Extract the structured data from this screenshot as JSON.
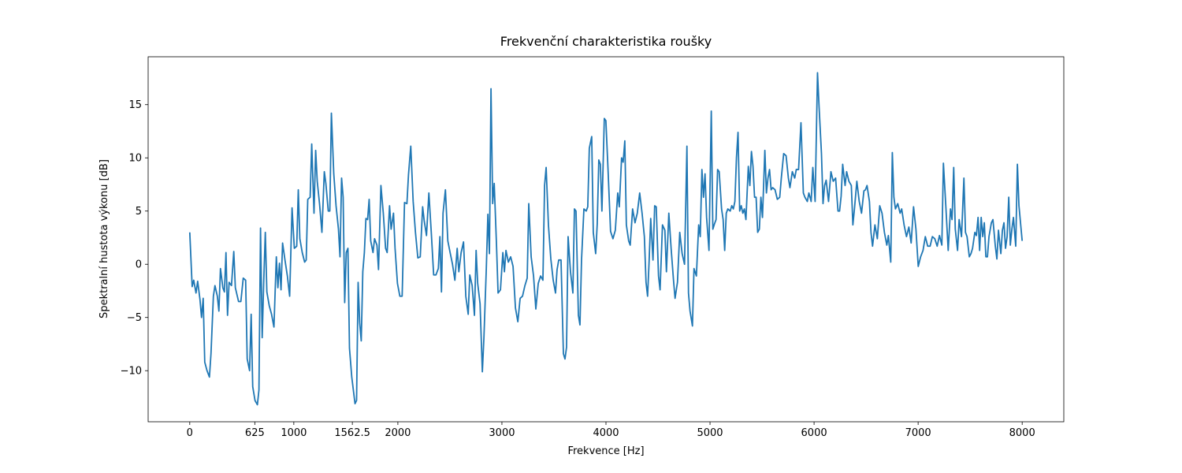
{
  "chart_data": {
    "type": "line",
    "title": "Frekvenční charakteristika roušky",
    "x_label": "Frekvence [Hz]",
    "y_label": "Spektralní hustota výkonu [dB]",
    "xlim": [
      -400,
      8400
    ],
    "ylim": [
      -14.8,
      19.5
    ],
    "xticks": [
      0,
      625,
      1000,
      1562.5,
      2000,
      3000,
      4000,
      5000,
      6000,
      7000,
      8000
    ],
    "yticks": [
      {
        "value": -10,
        "label": "−10"
      },
      {
        "value": -5,
        "label": "−5"
      },
      0,
      5,
      10,
      15
    ],
    "grid": false,
    "x": [
      0,
      23,
      38,
      60,
      76,
      98,
      113,
      129,
      144,
      166,
      189,
      204,
      227,
      242,
      265,
      280,
      295,
      318,
      333,
      348,
      363,
      378,
      401,
      423,
      438,
      469,
      491,
      514,
      537,
      552,
      575,
      590,
      605,
      627,
      650,
      665,
      680,
      696,
      711,
      726,
      741,
      764,
      786,
      809,
      832,
      847,
      862,
      877,
      892,
      915,
      938,
      960,
      983,
      1005,
      1028,
      1043,
      1058,
      1081,
      1104,
      1119,
      1134,
      1157,
      1172,
      1194,
      1210,
      1225,
      1247,
      1270,
      1293,
      1308,
      1331,
      1346,
      1361,
      1384,
      1406,
      1429,
      1444,
      1459,
      1474,
      1489,
      1504,
      1520,
      1535,
      1557,
      1588,
      1603,
      1618,
      1633,
      1648,
      1663,
      1678,
      1693,
      1709,
      1724,
      1739,
      1761,
      1776,
      1799,
      1814,
      1837,
      1860,
      1882,
      1897,
      1920,
      1935,
      1958,
      1973,
      1996,
      2019,
      2041,
      2064,
      2087,
      2102,
      2124,
      2147,
      2169,
      2192,
      2215,
      2238,
      2253,
      2275,
      2298,
      2321,
      2344,
      2366,
      2389,
      2404,
      2419,
      2434,
      2457,
      2480,
      2502,
      2525,
      2548,
      2570,
      2586,
      2608,
      2631,
      2653,
      2676,
      2691,
      2714,
      2736,
      2752,
      2767,
      2790,
      2812,
      2827,
      2850,
      2865,
      2880,
      2895,
      2911,
      2926,
      2948,
      2963,
      2986,
      3009,
      3024,
      3039,
      3062,
      3084,
      3107,
      3130,
      3153,
      3175,
      3198,
      3221,
      3243,
      3258,
      3281,
      3304,
      3326,
      3349,
      3372,
      3394,
      3410,
      3425,
      3447,
      3470,
      3493,
      3515,
      3530,
      3546,
      3568,
      3591,
      3606,
      3621,
      3636,
      3659,
      3682,
      3697,
      3712,
      3735,
      3750,
      3765,
      3788,
      3810,
      3825,
      3840,
      3863,
      3878,
      3901,
      3916,
      3931,
      3946,
      3961,
      3984,
      3999,
      4022,
      4044,
      4067,
      4090,
      4113,
      4128,
      4150,
      4165,
      4181,
      4196,
      4218,
      4233,
      4256,
      4279,
      4301,
      4324,
      4347,
      4369,
      4385,
      4400,
      4415,
      4430,
      4452,
      4468,
      4483,
      4505,
      4520,
      4543,
      4566,
      4581,
      4604,
      4626,
      4649,
      4664,
      4687,
      4709,
      4732,
      4755,
      4778,
      4793,
      4808,
      4831,
      4846,
      4869,
      4891,
      4906,
      4922,
      4937,
      4952,
      4967,
      4990,
      5012,
      5027,
      5043,
      5058,
      5073,
      5088,
      5111,
      5126,
      5141,
      5156,
      5171,
      5194,
      5209,
      5224,
      5239,
      5254,
      5269,
      5285,
      5300,
      5315,
      5330,
      5345,
      5368,
      5383,
      5398,
      5413,
      5428,
      5443,
      5458,
      5474,
      5489,
      5504,
      5527,
      5542,
      5557,
      5572,
      5587,
      5602,
      5625,
      5647,
      5670,
      5685,
      5708,
      5731,
      5753,
      5768,
      5791,
      5814,
      5829,
      5851,
      5874,
      5897,
      5912,
      5935,
      5950,
      5972,
      5988,
      6010,
      6033,
      6048,
      6071,
      6086,
      6101,
      6116,
      6139,
      6162,
      6184,
      6207,
      6230,
      6245,
      6260,
      6275,
      6298,
      6313,
      6335,
      6358,
      6373,
      6388,
      6411,
      6434,
      6456,
      6479,
      6494,
      6509,
      6532,
      6547,
      6562,
      6585,
      6608,
      6631,
      6653,
      6676,
      6699,
      6714,
      6737,
      6752,
      6767,
      6782,
      6804,
      6827,
      6842,
      6865,
      6888,
      6911,
      6933,
      6956,
      6979,
      7001,
      7024,
      7047,
      7069,
      7092,
      7115,
      7137,
      7160,
      7183,
      7205,
      7228,
      7243,
      7266,
      7289,
      7311,
      7326,
      7342,
      7357,
      7379,
      7394,
      7417,
      7440,
      7455,
      7470,
      7492,
      7508,
      7523,
      7545,
      7560,
      7576,
      7591,
      7606,
      7621,
      7636,
      7651,
      7666,
      7681,
      7704,
      7719,
      7742,
      7757,
      7772,
      7795,
      7810,
      7825,
      7840,
      7855,
      7871,
      7886,
      7901,
      7916,
      7938,
      7954,
      7969,
      8000
    ],
    "series": [
      {
        "color": "#1f77b4",
        "values": [
          3.0,
          -2.1,
          -1.5,
          -2.7,
          -1.6,
          -3.3,
          -5.0,
          -3.2,
          -9.2,
          -10.0,
          -10.6,
          -8.4,
          -3.0,
          -2.0,
          -3.0,
          -4.4,
          -0.4,
          -2.2,
          -2.6,
          1.1,
          -4.8,
          -1.7,
          -2.0,
          1.2,
          -2.2,
          -3.5,
          -3.5,
          -1.3,
          -1.5,
          -8.9,
          -10.0,
          -4.7,
          -11.5,
          -12.8,
          -13.2,
          -11.8,
          3.4,
          -6.9,
          -1.6,
          3.0,
          -2.6,
          -3.9,
          -4.7,
          -5.9,
          0.7,
          -2.2,
          0.1,
          -2.4,
          2.0,
          0.4,
          -1.1,
          -3.0,
          5.3,
          1.5,
          1.7,
          7.0,
          2.4,
          1.1,
          0.2,
          0.4,
          6.1,
          6.3,
          11.3,
          4.8,
          10.7,
          7.8,
          5.7,
          3.0,
          8.7,
          7.6,
          5.0,
          5.0,
          14.2,
          8.5,
          5.5,
          3.3,
          0.7,
          8.1,
          6.3,
          -3.6,
          1.1,
          1.5,
          -7.9,
          -10.6,
          -13.1,
          -12.8,
          -1.7,
          -5.5,
          -7.2,
          -0.7,
          1.1,
          4.3,
          4.2,
          6.1,
          2.2,
          1.1,
          2.4,
          1.8,
          -0.5,
          7.4,
          4.8,
          1.5,
          1.1,
          5.5,
          3.3,
          4.8,
          1.5,
          -1.8,
          -3.0,
          -3.0,
          5.8,
          5.7,
          8.4,
          11.1,
          5.9,
          3.0,
          0.6,
          0.7,
          5.4,
          4.1,
          2.7,
          6.7,
          3.0,
          -1.0,
          -1.0,
          -0.4,
          2.6,
          -2.6,
          4.8,
          7.0,
          2.2,
          1.1,
          0.0,
          -1.5,
          1.5,
          -0.7,
          1.1,
          2.1,
          -3.0,
          -4.7,
          -1.0,
          -2.0,
          -4.8,
          1.3,
          -1.8,
          -3.7,
          -10.1,
          -6.9,
          -0.4,
          4.7,
          1.0,
          16.5,
          5.7,
          7.6,
          1.8,
          -2.7,
          -2.4,
          1.1,
          -0.7,
          1.3,
          0.2,
          0.7,
          -0.2,
          -4.1,
          -5.4,
          -3.2,
          -3.0,
          -2.0,
          -1.3,
          5.7,
          0.7,
          -1.1,
          -4.2,
          -1.8,
          -1.1,
          -1.5,
          7.4,
          9.1,
          3.7,
          0.5,
          -1.5,
          -2.7,
          -0.5,
          0.4,
          0.4,
          -8.4,
          -8.9,
          -7.8,
          2.6,
          -0.7,
          -2.7,
          5.2,
          5.0,
          -4.8,
          -5.7,
          0.4,
          5.2,
          5.0,
          5.4,
          10.9,
          12.0,
          3.0,
          1.0,
          3.8,
          9.8,
          9.4,
          5.0,
          13.7,
          13.5,
          8.4,
          3.1,
          2.4,
          3.2,
          6.7,
          5.4,
          10.0,
          9.6,
          11.6,
          3.7,
          2.2,
          1.8,
          5.2,
          3.9,
          4.8,
          6.7,
          4.8,
          2.6,
          -1.7,
          -3.0,
          0.4,
          4.3,
          0.4,
          5.5,
          5.4,
          -1.1,
          -2.4,
          3.7,
          3.2,
          -0.7,
          4.8,
          1.5,
          -1.5,
          -3.2,
          -1.7,
          3.0,
          1.0,
          0.0,
          11.1,
          -2.7,
          -4.4,
          -5.8,
          -0.4,
          -1.1,
          3.7,
          2.6,
          8.9,
          6.3,
          8.5,
          4.4,
          1.3,
          14.4,
          3.3,
          3.8,
          4.2,
          8.9,
          8.7,
          5.2,
          4.2,
          1.3,
          4.8,
          5.2,
          5.0,
          5.5,
          5.2,
          5.9,
          10.0,
          12.4,
          5.0,
          5.5,
          4.8,
          5.2,
          4.2,
          9.2,
          7.4,
          10.6,
          9.2,
          6.3,
          6.3,
          3.0,
          3.3,
          6.3,
          4.4,
          10.7,
          6.7,
          8.1,
          8.9,
          7.0,
          7.2,
          7.0,
          6.1,
          6.3,
          8.1,
          10.4,
          10.2,
          8.1,
          7.2,
          8.7,
          8.1,
          8.9,
          8.9,
          13.3,
          6.7,
          6.3,
          5.9,
          6.7,
          5.9,
          9.1,
          5.9,
          18.0,
          14.8,
          10.4,
          5.7,
          7.4,
          7.9,
          5.9,
          8.7,
          7.8,
          8.1,
          5.0,
          5.0,
          6.4,
          9.4,
          7.4,
          8.7,
          7.8,
          7.4,
          3.7,
          5.2,
          7.8,
          5.9,
          4.8,
          6.9,
          7.0,
          7.4,
          5.9,
          3.0,
          1.7,
          3.7,
          2.4,
          5.5,
          4.8,
          3.0,
          1.8,
          2.7,
          0.2,
          10.5,
          6.3,
          5.2,
          5.7,
          4.8,
          5.2,
          3.7,
          2.6,
          3.5,
          2.0,
          5.4,
          3.3,
          -0.2,
          0.7,
          1.3,
          2.6,
          1.7,
          1.7,
          2.6,
          2.4,
          1.7,
          2.7,
          1.8,
          9.5,
          5.5,
          1.3,
          5.2,
          4.2,
          9.1,
          3.3,
          1.3,
          4.2,
          2.6,
          8.1,
          3.0,
          2.6,
          0.7,
          1.0,
          1.5,
          3.0,
          2.7,
          4.4,
          1.3,
          4.4,
          2.6,
          3.9,
          0.7,
          0.7,
          2.6,
          3.9,
          4.2,
          1.7,
          0.5,
          3.2,
          1.0,
          3.2,
          3.9,
          1.5,
          2.6,
          6.3,
          1.8,
          3.3,
          4.4,
          1.7,
          9.4,
          5.5,
          2.2
        ]
      }
    ]
  }
}
